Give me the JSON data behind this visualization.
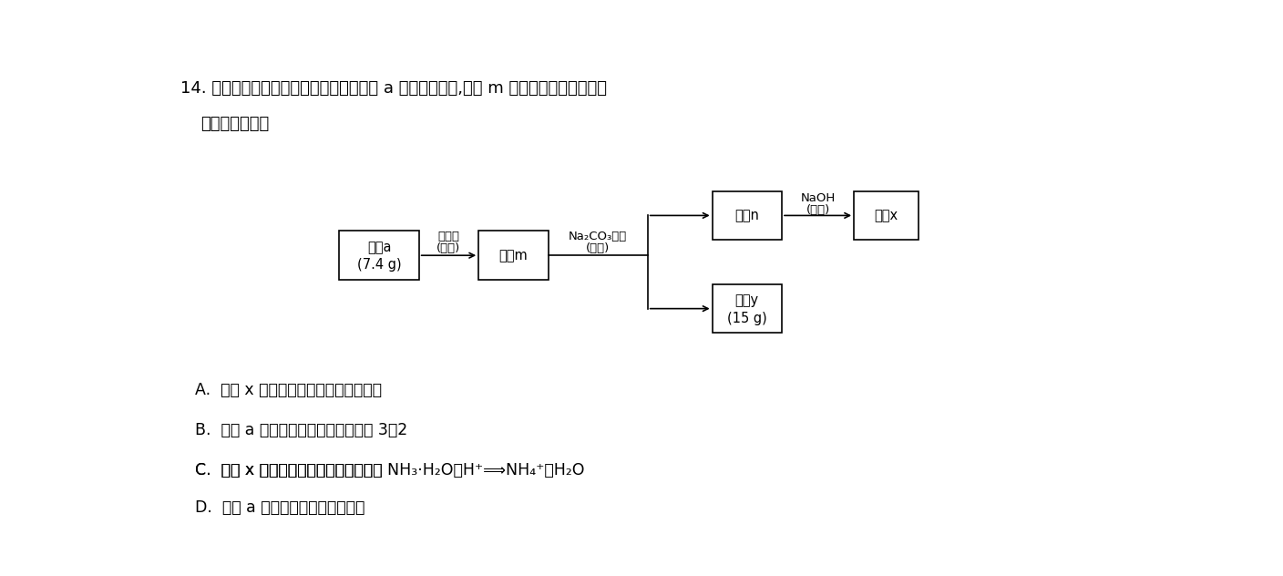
{
  "background_color": "#ffffff",
  "title_line1": "14. 某化学小组对由两种元素组成的化合物 a 进行如图实验,溶液 m 焉色试验为砖红色。下",
  "title_line2": "列说法正确的是",
  "box_a_label1": "固体a",
  "box_a_label2": "(7.4 g)",
  "box_m_label": "溶液m",
  "box_n_label": "溶液n",
  "box_x_label": "气体x",
  "box_y_label1": "沉淠y",
  "box_y_label2": "(15 g)",
  "arrow1_label1": "稀盐酸",
  "arrow1_label2": "(足量)",
  "arrow2_label1": "Na₂CO₃溶液",
  "arrow2_label2": "(足量)",
  "arrow3_label1": "NaOH",
  "arrow3_label2": "(加热)",
  "option_a": "A.  气体 x 能使湿润的蓝色石蕊试纸变红",
  "option_b": "B.  固体 a 中阴、阳离子的数目之比为 3：2",
  "option_c_pre": "C.  气体 x 与稀盐酸反应的离子方程式为 ",
  "option_c_eq": "NH₃·H₂O＋H⁺⟹NH₄⁺＋H₂O",
  "option_d": "D.  固体 a 与稀盐酸反应生成两种盐"
}
